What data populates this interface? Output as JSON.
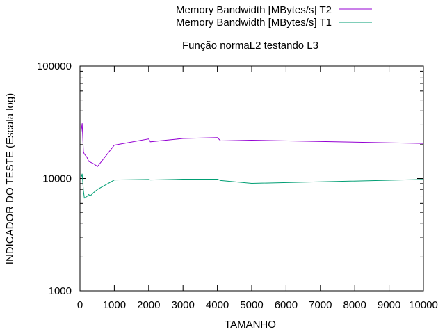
{
  "chart_data": {
    "type": "line",
    "title": "Função normaL2 testando L3",
    "xlabel": "TAMANHO",
    "ylabel": "INDICADOR DO TESTE (Escala log)",
    "xlim": [
      0,
      10000
    ],
    "ylim": [
      1000,
      100000
    ],
    "y_scale": "log",
    "grid": false,
    "legend_position": "top-right, outside plot",
    "x_ticks": [
      0,
      1000,
      2000,
      3000,
      4000,
      5000,
      6000,
      7000,
      8000,
      9000,
      10000
    ],
    "x_tick_labels": [
      "0",
      "1000",
      "2000",
      "3000",
      "4000",
      "5000",
      "6000",
      "7000",
      "8000",
      "9000",
      "10000"
    ],
    "y_ticks": [
      1000,
      10000,
      100000
    ],
    "y_tick_labels": [
      "1000",
      "10000",
      "100000"
    ],
    "series": [
      {
        "name": "Memory Bandwidth [MBytes/s] T2",
        "color": "#9400d3",
        "x": [
          32,
          64,
          100,
          128,
          200,
          256,
          300,
          400,
          512,
          1000,
          2000,
          2048,
          3000,
          4000,
          4096,
          5000,
          10000
        ],
        "y": [
          26000,
          31000,
          17200,
          16500,
          15500,
          14200,
          14000,
          13500,
          12800,
          19800,
          22500,
          21200,
          22700,
          23100,
          21600,
          21900,
          20500
        ]
      },
      {
        "name": "Memory Bandwidth [MBytes/s] T1",
        "color": "#009e73",
        "x": [
          32,
          64,
          100,
          128,
          200,
          256,
          300,
          400,
          512,
          1000,
          2000,
          2048,
          3000,
          4000,
          4096,
          5000,
          10000
        ],
        "y": [
          10200,
          11000,
          7800,
          6700,
          6900,
          7200,
          7000,
          7500,
          8000,
          9700,
          9800,
          9700,
          9850,
          9850,
          9600,
          9050,
          9800
        ]
      }
    ]
  }
}
